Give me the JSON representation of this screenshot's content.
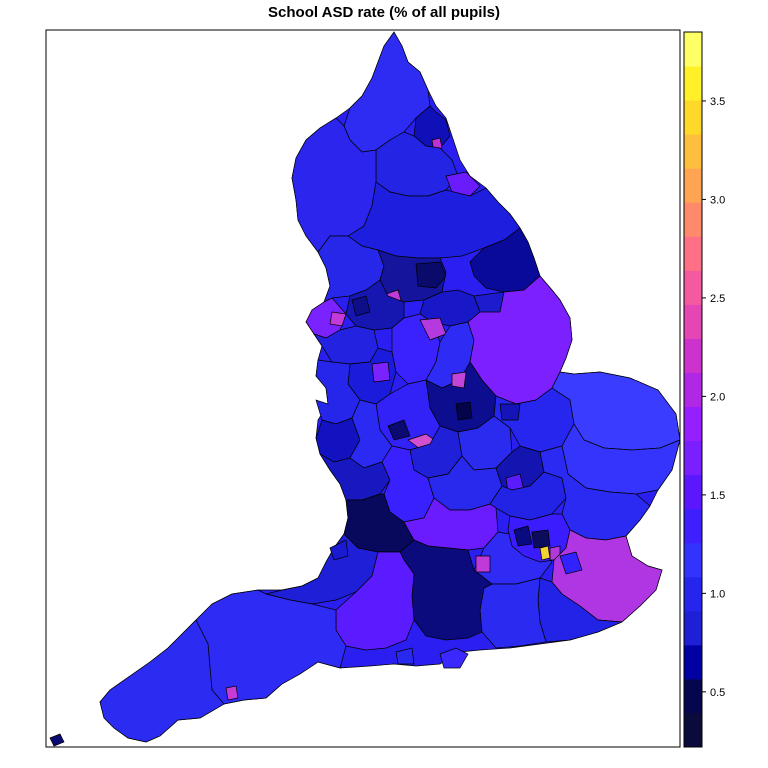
{
  "title": "School ASD rate (% of all pupils)",
  "colorbar": {
    "range": [
      0.22,
      3.85
    ],
    "ticks": [
      "0.5",
      "1.0",
      "1.5",
      "2.0",
      "2.5",
      "3.0",
      "3.5"
    ],
    "colors": [
      "#0b0b3b",
      "#06064f",
      "#0000a3",
      "#1f1fd6",
      "#2525ee",
      "#3333ff",
      "#3d1fff",
      "#5b18ff",
      "#7a1fff",
      "#951fff",
      "#b027e6",
      "#cc33cc",
      "#e546b4",
      "#f55aa0",
      "#ff6f86",
      "#ff8a6b",
      "#ffa453",
      "#ffbf3e",
      "#ffd929",
      "#fff027",
      "#ffff66"
    ]
  },
  "map": {
    "region": "England",
    "unit": "% of all pupils"
  }
}
